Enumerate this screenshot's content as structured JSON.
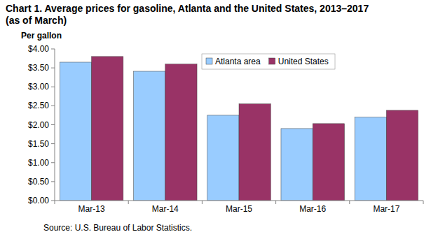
{
  "chart_data": {
    "type": "bar",
    "title": "Chart 1.  Average prices for gasoline, Atlanta and the United States, 2013–2017",
    "subtitle": "(as of March)",
    "ylabel": "Per gallon",
    "source": "Source: U.S. Bureau of Labor Statistics.",
    "categories": [
      "Mar-13",
      "Mar-14",
      "Mar-15",
      "Mar-16",
      "Mar-17"
    ],
    "series": [
      {
        "name": "Atlanta area",
        "color": "#99ccff",
        "values": [
          3.65,
          3.41,
          2.25,
          1.9,
          2.2
        ]
      },
      {
        "name": "United States",
        "color": "#993366",
        "values": [
          3.8,
          3.6,
          2.55,
          2.03,
          2.38
        ]
      }
    ],
    "ylim": [
      0,
      4
    ],
    "yticks": [
      {
        "value": 0,
        "label": "$0.00"
      },
      {
        "value": 0.5,
        "label": "$0.50"
      },
      {
        "value": 1,
        "label": "$1.00"
      },
      {
        "value": 1.5,
        "label": "$1.50"
      },
      {
        "value": 2,
        "label": "$2.00"
      },
      {
        "value": 2.5,
        "label": "$2.50"
      },
      {
        "value": 3,
        "label": "$3.00"
      },
      {
        "value": 3.5,
        "label": "$3.50"
      },
      {
        "value": 4,
        "label": "$4.00"
      }
    ],
    "grid": false,
    "legend": "top"
  }
}
